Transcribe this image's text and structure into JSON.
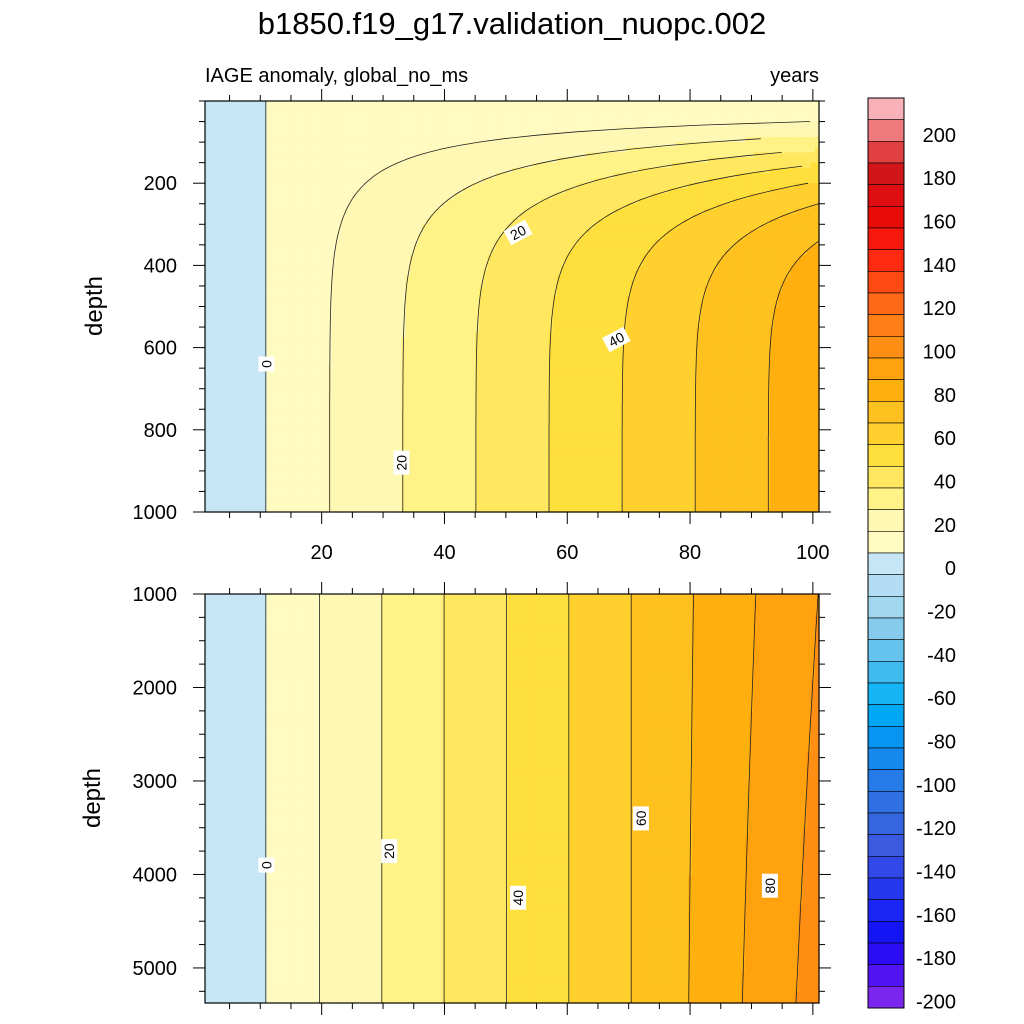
{
  "title": "b1850.f19_g17.validation_nuopc.002",
  "chart_data": [
    {
      "type": "contour",
      "left_subtitle": "IAGE anomaly, global_no_ms",
      "right_subtitle": "years",
      "ylabel": "depth",
      "xlabel": "",
      "xlim": [
        1,
        101
      ],
      "ylim": [
        0,
        1000
      ],
      "y_reversed": true,
      "x_ticks": [
        20,
        40,
        60,
        80,
        100
      ],
      "y_ticks": [
        200,
        400,
        600,
        800,
        1000
      ],
      "contour_interval": 10,
      "contour_labels": [
        {
          "text": "0",
          "x": 11,
          "y": 640
        },
        {
          "text": "20",
          "x": 33,
          "y": 880
        },
        {
          "text": "20",
          "x": 52,
          "y": 320
        },
        {
          "text": "40",
          "x": 68,
          "y": 580
        }
      ]
    },
    {
      "type": "contour",
      "ylabel": "depth",
      "xlabel": "",
      "xlim": [
        1,
        101
      ],
      "ylim": [
        1000,
        5375
      ],
      "y_reversed": true,
      "x_ticks": [
        20,
        40,
        60,
        80,
        100
      ],
      "y_ticks": [
        1000,
        2000,
        3000,
        4000,
        5000
      ],
      "contour_interval": 10,
      "contour_labels": [
        {
          "text": "0",
          "x": 11,
          "y": 3900
        },
        {
          "text": "20",
          "x": 31,
          "y": 3750
        },
        {
          "text": "40",
          "x": 52,
          "y": 4250
        },
        {
          "text": "60",
          "x": 72,
          "y": 3400
        },
        {
          "text": "80",
          "x": 93,
          "y": 4120
        }
      ]
    }
  ],
  "colorbar": {
    "labels": [
      "200",
      "180",
      "160",
      "140",
      "120",
      "100",
      "80",
      "60",
      "40",
      "20",
      "0",
      "-20",
      "-40",
      "-60",
      "-80",
      "-100",
      "-120",
      "-140",
      "-160",
      "-180",
      "-200"
    ],
    "colors_top_to_bottom": [
      "#f8b2b7",
      "#ef7a7d",
      "#e0403f",
      "#d1161a",
      "#df0e12",
      "#e80c08",
      "#f6180d",
      "#ff2a10",
      "#ff4a12",
      "#ff6a1a",
      "#ff7e16",
      "#ff8f14",
      "#ffa20e",
      "#ffb00f",
      "#ffc11f",
      "#ffd02e",
      "#ffdf3c",
      "#ffe860",
      "#fff287",
      "#fff8b4",
      "#fffbc1",
      "#c6e6f6",
      "#b3ddf2",
      "#a0d7ee",
      "#86cbec",
      "#66c3ee",
      "#3fbbf0",
      "#16b5f5",
      "#00a7f5",
      "#0894f2",
      "#1688ee",
      "#257ce9",
      "#2f70e4",
      "#3566df",
      "#3a5ae0",
      "#3249ea",
      "#2538ee",
      "#1a26f3",
      "#1514f5",
      "#2c0cf4",
      "#5214f2",
      "#7a26ee"
    ]
  }
}
